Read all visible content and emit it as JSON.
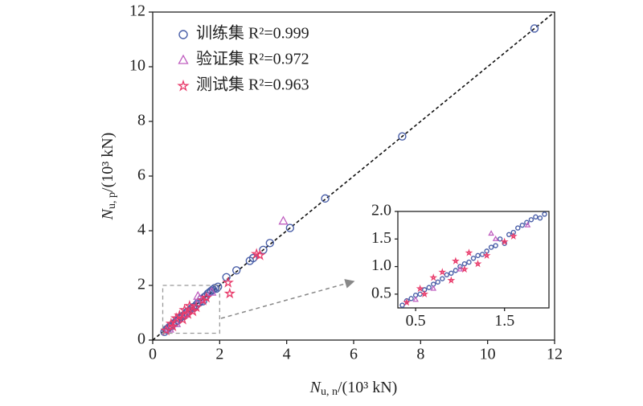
{
  "chart_data": [
    {
      "type": "scatter",
      "xlabel": {
        "symbol": "N",
        "sub": "u, n",
        "unit": "/(10³ kN)"
      },
      "ylabel": {
        "symbol": "N",
        "sub": "u, p",
        "unit": "/(10³ kN)"
      },
      "xlim": [
        0,
        12
      ],
      "ylim": [
        0,
        12
      ],
      "xticks": [
        0,
        2,
        4,
        6,
        8,
        10,
        12
      ],
      "yticks": [
        0,
        2,
        4,
        6,
        8,
        10,
        12
      ],
      "legend": "upper left",
      "diagonal": true,
      "series": [
        {
          "name": "训练集 R²=0.999",
          "color": "#4a5fa8",
          "marker": "circle",
          "x": [
            0.35,
            0.4,
            0.45,
            0.5,
            0.55,
            0.6,
            0.65,
            0.7,
            0.75,
            0.8,
            0.85,
            0.9,
            0.95,
            1.0,
            1.05,
            1.1,
            1.15,
            1.2,
            1.25,
            1.3,
            1.35,
            1.4,
            1.45,
            1.5,
            1.55,
            1.6,
            1.65,
            1.7,
            1.75,
            1.8,
            1.85,
            1.9,
            1.95,
            2.2,
            2.5,
            2.9,
            3.0,
            3.3,
            3.5,
            4.1,
            5.15,
            7.45,
            11.4
          ],
          "values": [
            0.3,
            0.38,
            0.42,
            0.48,
            0.5,
            0.58,
            0.62,
            0.68,
            0.72,
            0.78,
            0.85,
            0.88,
            0.93,
            1.0,
            1.05,
            1.08,
            1.15,
            1.2,
            1.22,
            1.28,
            1.35,
            1.38,
            1.5,
            1.42,
            1.58,
            1.62,
            1.7,
            1.75,
            1.8,
            1.85,
            1.9,
            1.88,
            1.95,
            2.3,
            2.55,
            2.9,
            3.0,
            3.3,
            3.55,
            4.1,
            5.18,
            7.45,
            11.4
          ]
        },
        {
          "name": "验证集 R²=0.972",
          "color": "#c060c0",
          "marker": "triangle",
          "x": [
            0.5,
            0.7,
            1.0,
            1.35,
            1.4,
            1.76,
            3.9
          ],
          "values": [
            0.4,
            0.6,
            0.95,
            1.6,
            1.5,
            1.75,
            4.35
          ]
        },
        {
          "name": "测试集 R²=0.963",
          "color": "#e83a6a",
          "marker": "star",
          "x": [
            0.4,
            0.55,
            0.6,
            0.7,
            0.8,
            0.9,
            0.95,
            1.05,
            1.1,
            1.2,
            1.3,
            1.5,
            1.6,
            2.25,
            2.3,
            3.1,
            3.2
          ],
          "values": [
            0.35,
            0.6,
            0.5,
            0.8,
            0.9,
            0.75,
            1.1,
            0.95,
            1.25,
            1.05,
            1.2,
            1.45,
            1.55,
            2.1,
            1.7,
            3.15,
            3.1
          ]
        }
      ]
    },
    {
      "type": "inset",
      "xlim": [
        0.3,
        2.0
      ],
      "ylim": [
        0.25,
        2.0
      ],
      "xticks": [
        0.5,
        1.5
      ],
      "yticks": [
        0.5,
        {
          "value": 1,
          "label": "1.0"
        },
        1.5,
        {
          "value": 2,
          "label": "2.0"
        }
      ]
    }
  ]
}
